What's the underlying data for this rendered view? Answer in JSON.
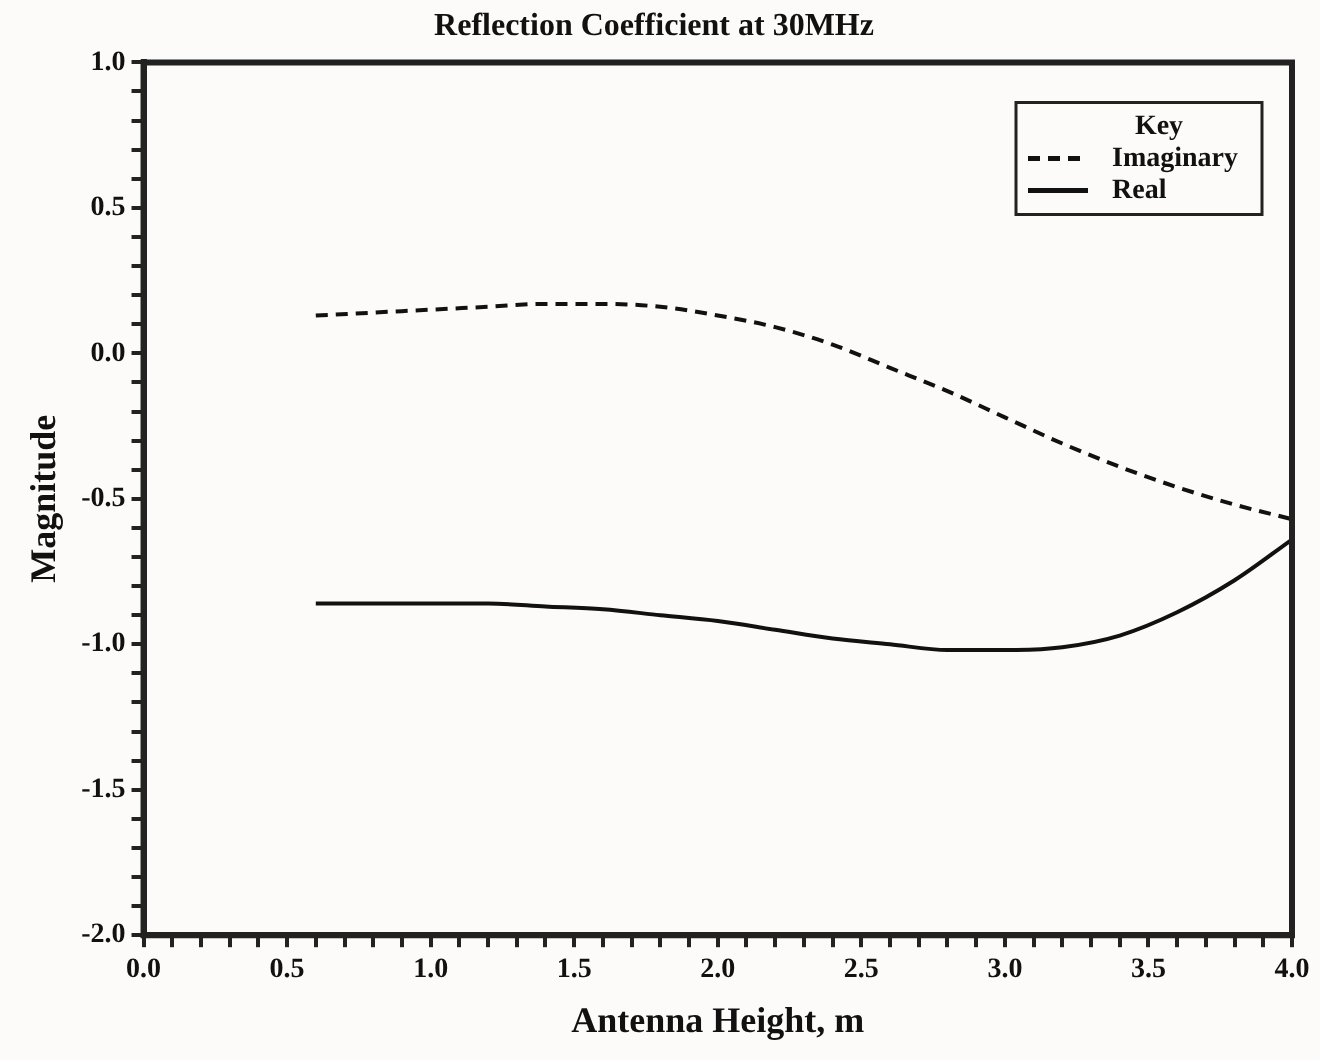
{
  "chart_data": {
    "type": "line",
    "title": "Reflection Coefficient at 30MHz",
    "xlabel": "Antenna Height, m",
    "ylabel": "Magnitude",
    "legend_title": "Key",
    "legend": "top right",
    "grid": false,
    "marker": "none",
    "x": [
      0.6,
      0.8,
      1.0,
      1.2,
      1.4,
      1.6,
      1.8,
      2.0,
      2.2,
      2.4,
      2.6,
      2.8,
      3.0,
      3.2,
      3.4,
      3.6,
      3.8,
      4.0
    ],
    "series": [
      {
        "name": "Imaginary",
        "color": "#111111",
        "line_style": "dashed",
        "values": [
          0.13,
          0.14,
          0.15,
          0.16,
          0.17,
          0.17,
          0.16,
          0.13,
          0.09,
          0.03,
          -0.05,
          -0.13,
          -0.22,
          -0.31,
          -0.39,
          -0.46,
          -0.52,
          -0.57
        ]
      },
      {
        "name": "Real",
        "color": "#111111",
        "line_style": "solid",
        "values": [
          -0.86,
          -0.86,
          -0.86,
          -0.86,
          -0.87,
          -0.88,
          -0.9,
          -0.92,
          -0.95,
          -0.98,
          -1.0,
          -1.02,
          -1.02,
          -1.01,
          -0.97,
          -0.89,
          -0.78,
          -0.64
        ]
      }
    ],
    "xlim": [
      0,
      4
    ],
    "ylim": [
      -2,
      1
    ],
    "xticks": [
      {
        "value": 0,
        "label": "0.0"
      },
      {
        "value": 0.1,
        "label": null
      },
      {
        "value": 0.2,
        "label": null
      },
      {
        "value": 0.3,
        "label": null
      },
      {
        "value": 0.4,
        "label": null
      },
      {
        "value": 0.5,
        "label": "0.5"
      },
      {
        "value": 0.6,
        "label": null
      },
      {
        "value": 0.7,
        "label": null
      },
      {
        "value": 0.8,
        "label": null
      },
      {
        "value": 0.9,
        "label": null
      },
      {
        "value": 1,
        "label": "1.0"
      },
      {
        "value": 1.1,
        "label": null
      },
      {
        "value": 1.2,
        "label": null
      },
      {
        "value": 1.3,
        "label": null
      },
      {
        "value": 1.4,
        "label": null
      },
      {
        "value": 1.5,
        "label": "1.5"
      },
      {
        "value": 1.6,
        "label": null
      },
      {
        "value": 1.7,
        "label": null
      },
      {
        "value": 1.8,
        "label": null
      },
      {
        "value": 1.9,
        "label": null
      },
      {
        "value": 2,
        "label": "2.0"
      },
      {
        "value": 2.1,
        "label": null
      },
      {
        "value": 2.2,
        "label": null
      },
      {
        "value": 2.3,
        "label": null
      },
      {
        "value": 2.4,
        "label": null
      },
      {
        "value": 2.5,
        "label": "2.5"
      },
      {
        "value": 2.6,
        "label": null
      },
      {
        "value": 2.7,
        "label": null
      },
      {
        "value": 2.8,
        "label": null
      },
      {
        "value": 2.9,
        "label": null
      },
      {
        "value": 3,
        "label": "3.0"
      },
      {
        "value": 3.1,
        "label": null
      },
      {
        "value": 3.2,
        "label": null
      },
      {
        "value": 3.3,
        "label": null
      },
      {
        "value": 3.4,
        "label": null
      },
      {
        "value": 3.5,
        "label": "3.5"
      },
      {
        "value": 3.6,
        "label": null
      },
      {
        "value": 3.7,
        "label": null
      },
      {
        "value": 3.8,
        "label": null
      },
      {
        "value": 3.9,
        "label": null
      },
      {
        "value": 4,
        "label": "4.0"
      }
    ],
    "yticks": [
      {
        "value": -2,
        "label": "-2.0"
      },
      {
        "value": -1.9,
        "label": null
      },
      {
        "value": -1.8,
        "label": null
      },
      {
        "value": -1.7,
        "label": null
      },
      {
        "value": -1.6,
        "label": null
      },
      {
        "value": -1.5,
        "label": "-1.5"
      },
      {
        "value": -1.4,
        "label": null
      },
      {
        "value": -1.3,
        "label": null
      },
      {
        "value": -1.2,
        "label": null
      },
      {
        "value": -1.1,
        "label": null
      },
      {
        "value": -1,
        "label": "-1.0"
      },
      {
        "value": -0.9,
        "label": null
      },
      {
        "value": -0.8,
        "label": null
      },
      {
        "value": -0.7,
        "label": null
      },
      {
        "value": -0.6,
        "label": null
      },
      {
        "value": -0.5,
        "label": "-0.5"
      },
      {
        "value": -0.4,
        "label": null
      },
      {
        "value": -0.3,
        "label": null
      },
      {
        "value": -0.2,
        "label": null
      },
      {
        "value": -0.1,
        "label": null
      },
      {
        "value": 0,
        "label": "0.0"
      },
      {
        "value": 0.1,
        "label": null
      },
      {
        "value": 0.2,
        "label": null
      },
      {
        "value": 0.3,
        "label": null
      },
      {
        "value": 0.4,
        "label": null
      },
      {
        "value": 0.5,
        "label": "0.5"
      },
      {
        "value": 0.6,
        "label": null
      },
      {
        "value": 0.7,
        "label": null
      },
      {
        "value": 0.8,
        "label": null
      },
      {
        "value": 0.9,
        "label": null
      },
      {
        "value": 1,
        "label": "1.0"
      }
    ]
  }
}
